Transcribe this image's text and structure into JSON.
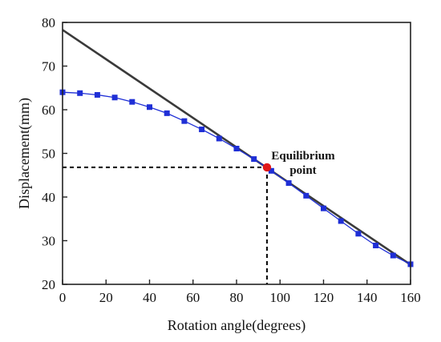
{
  "chart_data": {
    "type": "line",
    "title": "",
    "xlabel": "Rotation angle(degrees)",
    "ylabel": "Displacement(mm)",
    "xlim": [
      0,
      160
    ],
    "ylim": [
      20,
      80
    ],
    "xticks": [
      0,
      20,
      40,
      60,
      80,
      100,
      120,
      140,
      160
    ],
    "yticks": [
      20,
      30,
      40,
      50,
      60,
      70,
      80
    ],
    "grid": false,
    "legend": "none",
    "series": [
      {
        "type": "line-markers",
        "color": "#1f2fd6",
        "marker": "square",
        "x": [
          0,
          8,
          16,
          24,
          32,
          40,
          48,
          56,
          64,
          72,
          80,
          88,
          96,
          104,
          112,
          120,
          128,
          136,
          144,
          152,
          160
        ],
        "y": [
          64.0,
          63.8,
          63.4,
          62.8,
          61.8,
          60.6,
          59.2,
          57.4,
          55.5,
          53.4,
          51.1,
          48.7,
          46.0,
          43.2,
          40.3,
          37.4,
          34.5,
          31.6,
          28.9,
          26.6,
          24.6
        ]
      },
      {
        "type": "line",
        "color": "#3a3a3a",
        "x": [
          0,
          160
        ],
        "y": [
          78.3,
          24.5
        ]
      }
    ],
    "equilibrium": {
      "label_line1": "Equilibrium",
      "label_line2": "point",
      "x": 94,
      "y": 46.8,
      "color": "#e11818"
    }
  }
}
